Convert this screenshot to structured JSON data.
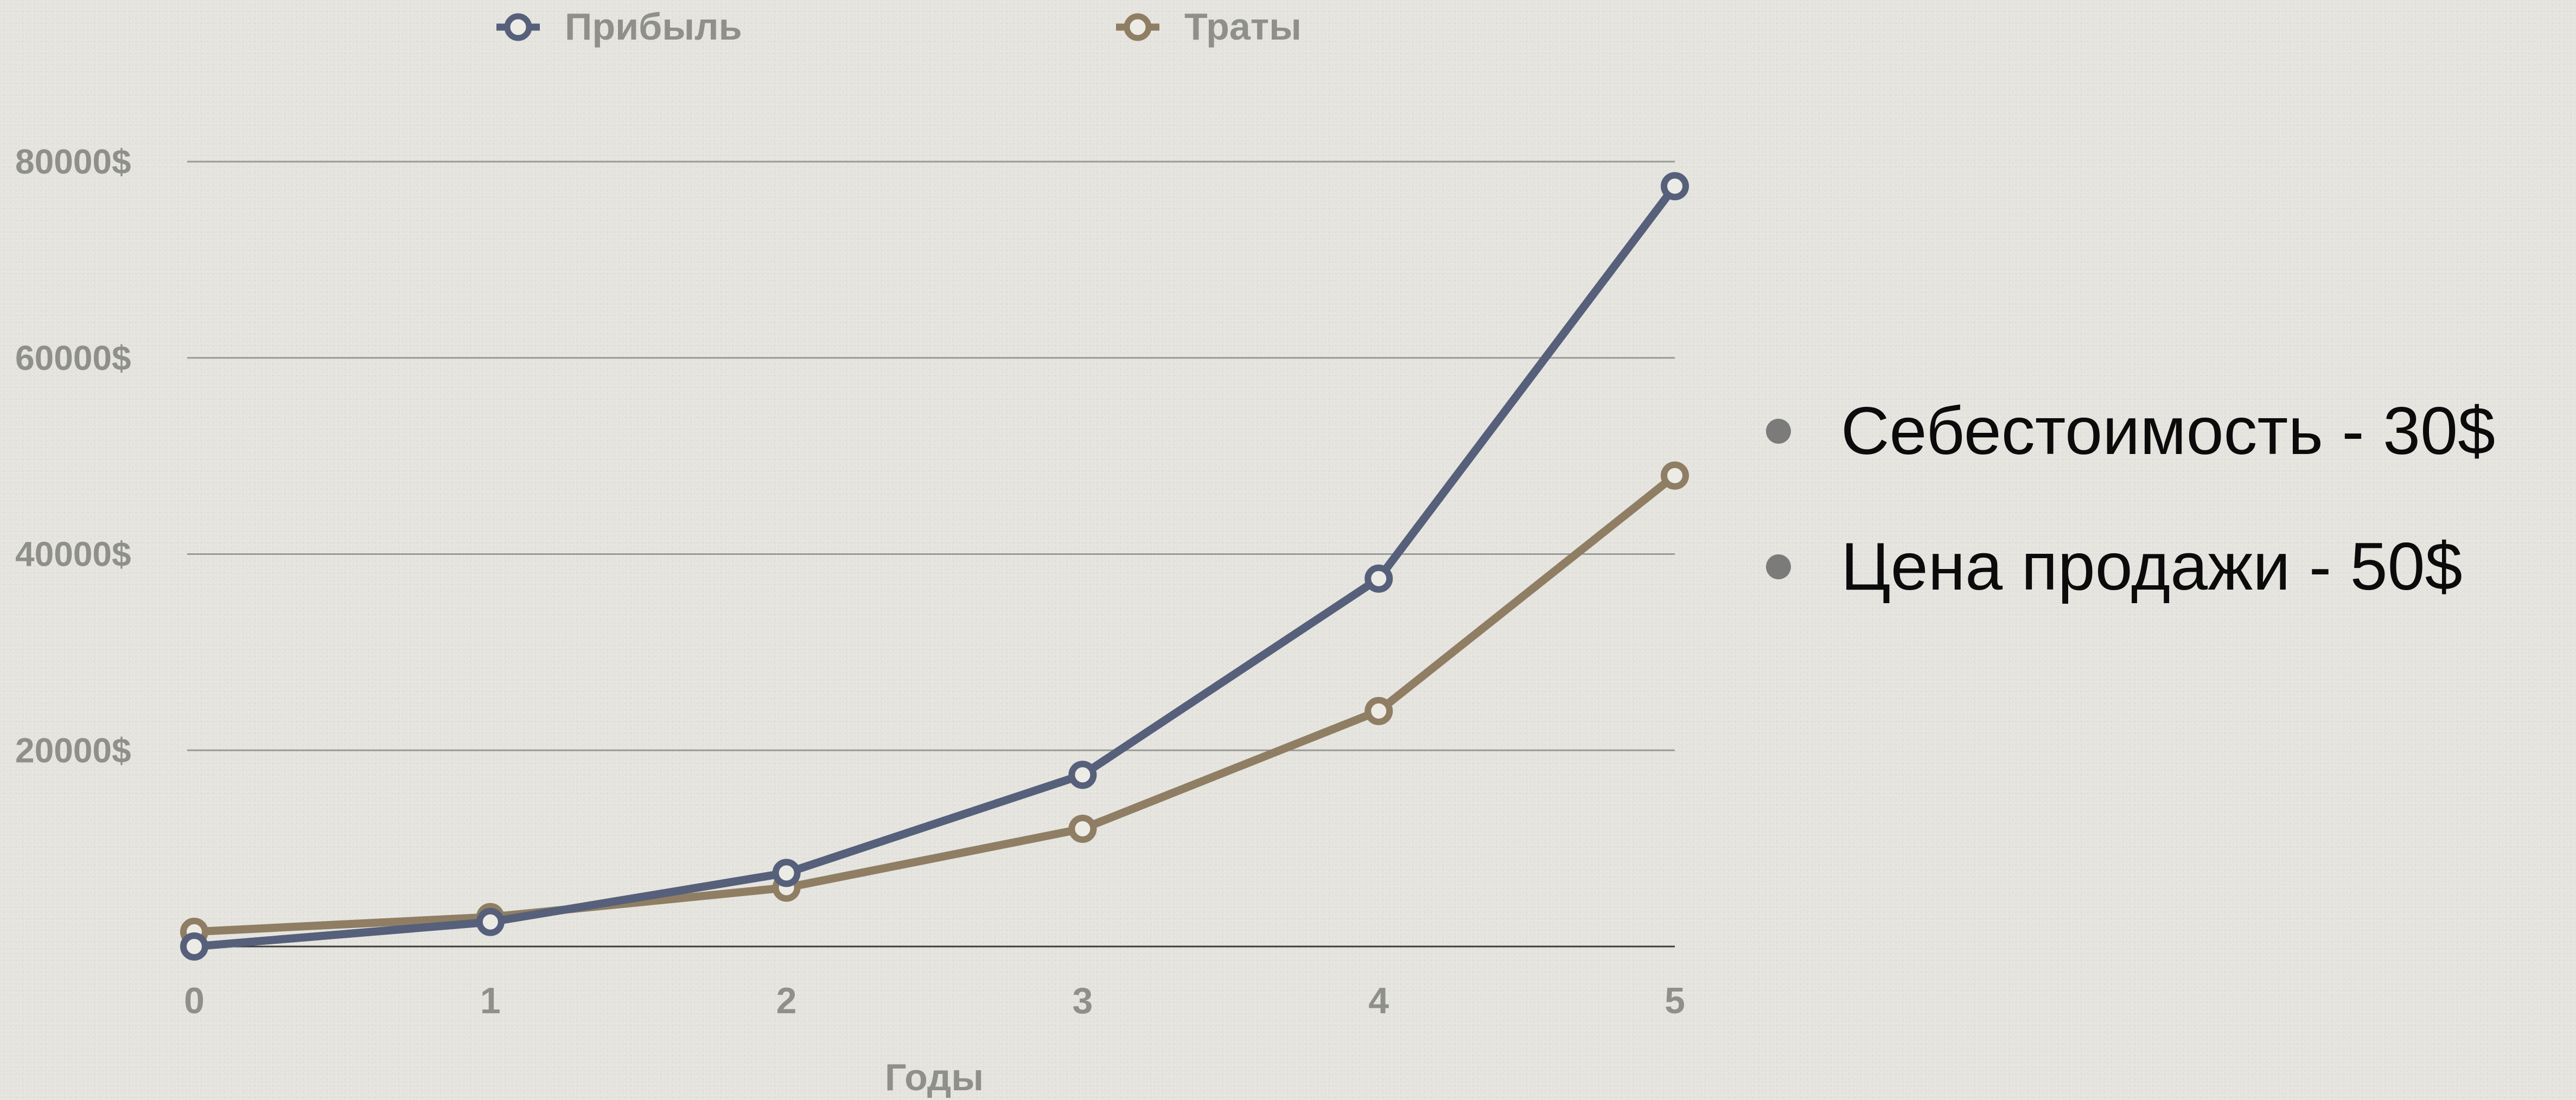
{
  "chart_data": {
    "type": "line",
    "x": [
      0,
      1,
      2,
      3,
      4,
      5
    ],
    "categories": [
      "0",
      "1",
      "2",
      "3",
      "4",
      "5"
    ],
    "xlabel": "Годы",
    "ylabel": "",
    "ylim": [
      0,
      80000
    ],
    "yticks": [
      20000,
      40000,
      60000,
      80000
    ],
    "ytick_labels": [
      "20000$",
      "40000$",
      "60000$",
      "80000$"
    ],
    "grid": true,
    "legend_position": "top",
    "series": [
      {
        "name": "Прибыль",
        "color": "#56607a",
        "values": [
          0,
          2500,
          7500,
          17500,
          37500,
          77500
        ]
      },
      {
        "name": "Траты",
        "color": "#8f7e63",
        "values": [
          1500,
          3000,
          6000,
          12000,
          24000,
          48000
        ]
      }
    ]
  },
  "notes": [
    "Себестоимость - 30$",
    "Цена продажи - 50$"
  ]
}
